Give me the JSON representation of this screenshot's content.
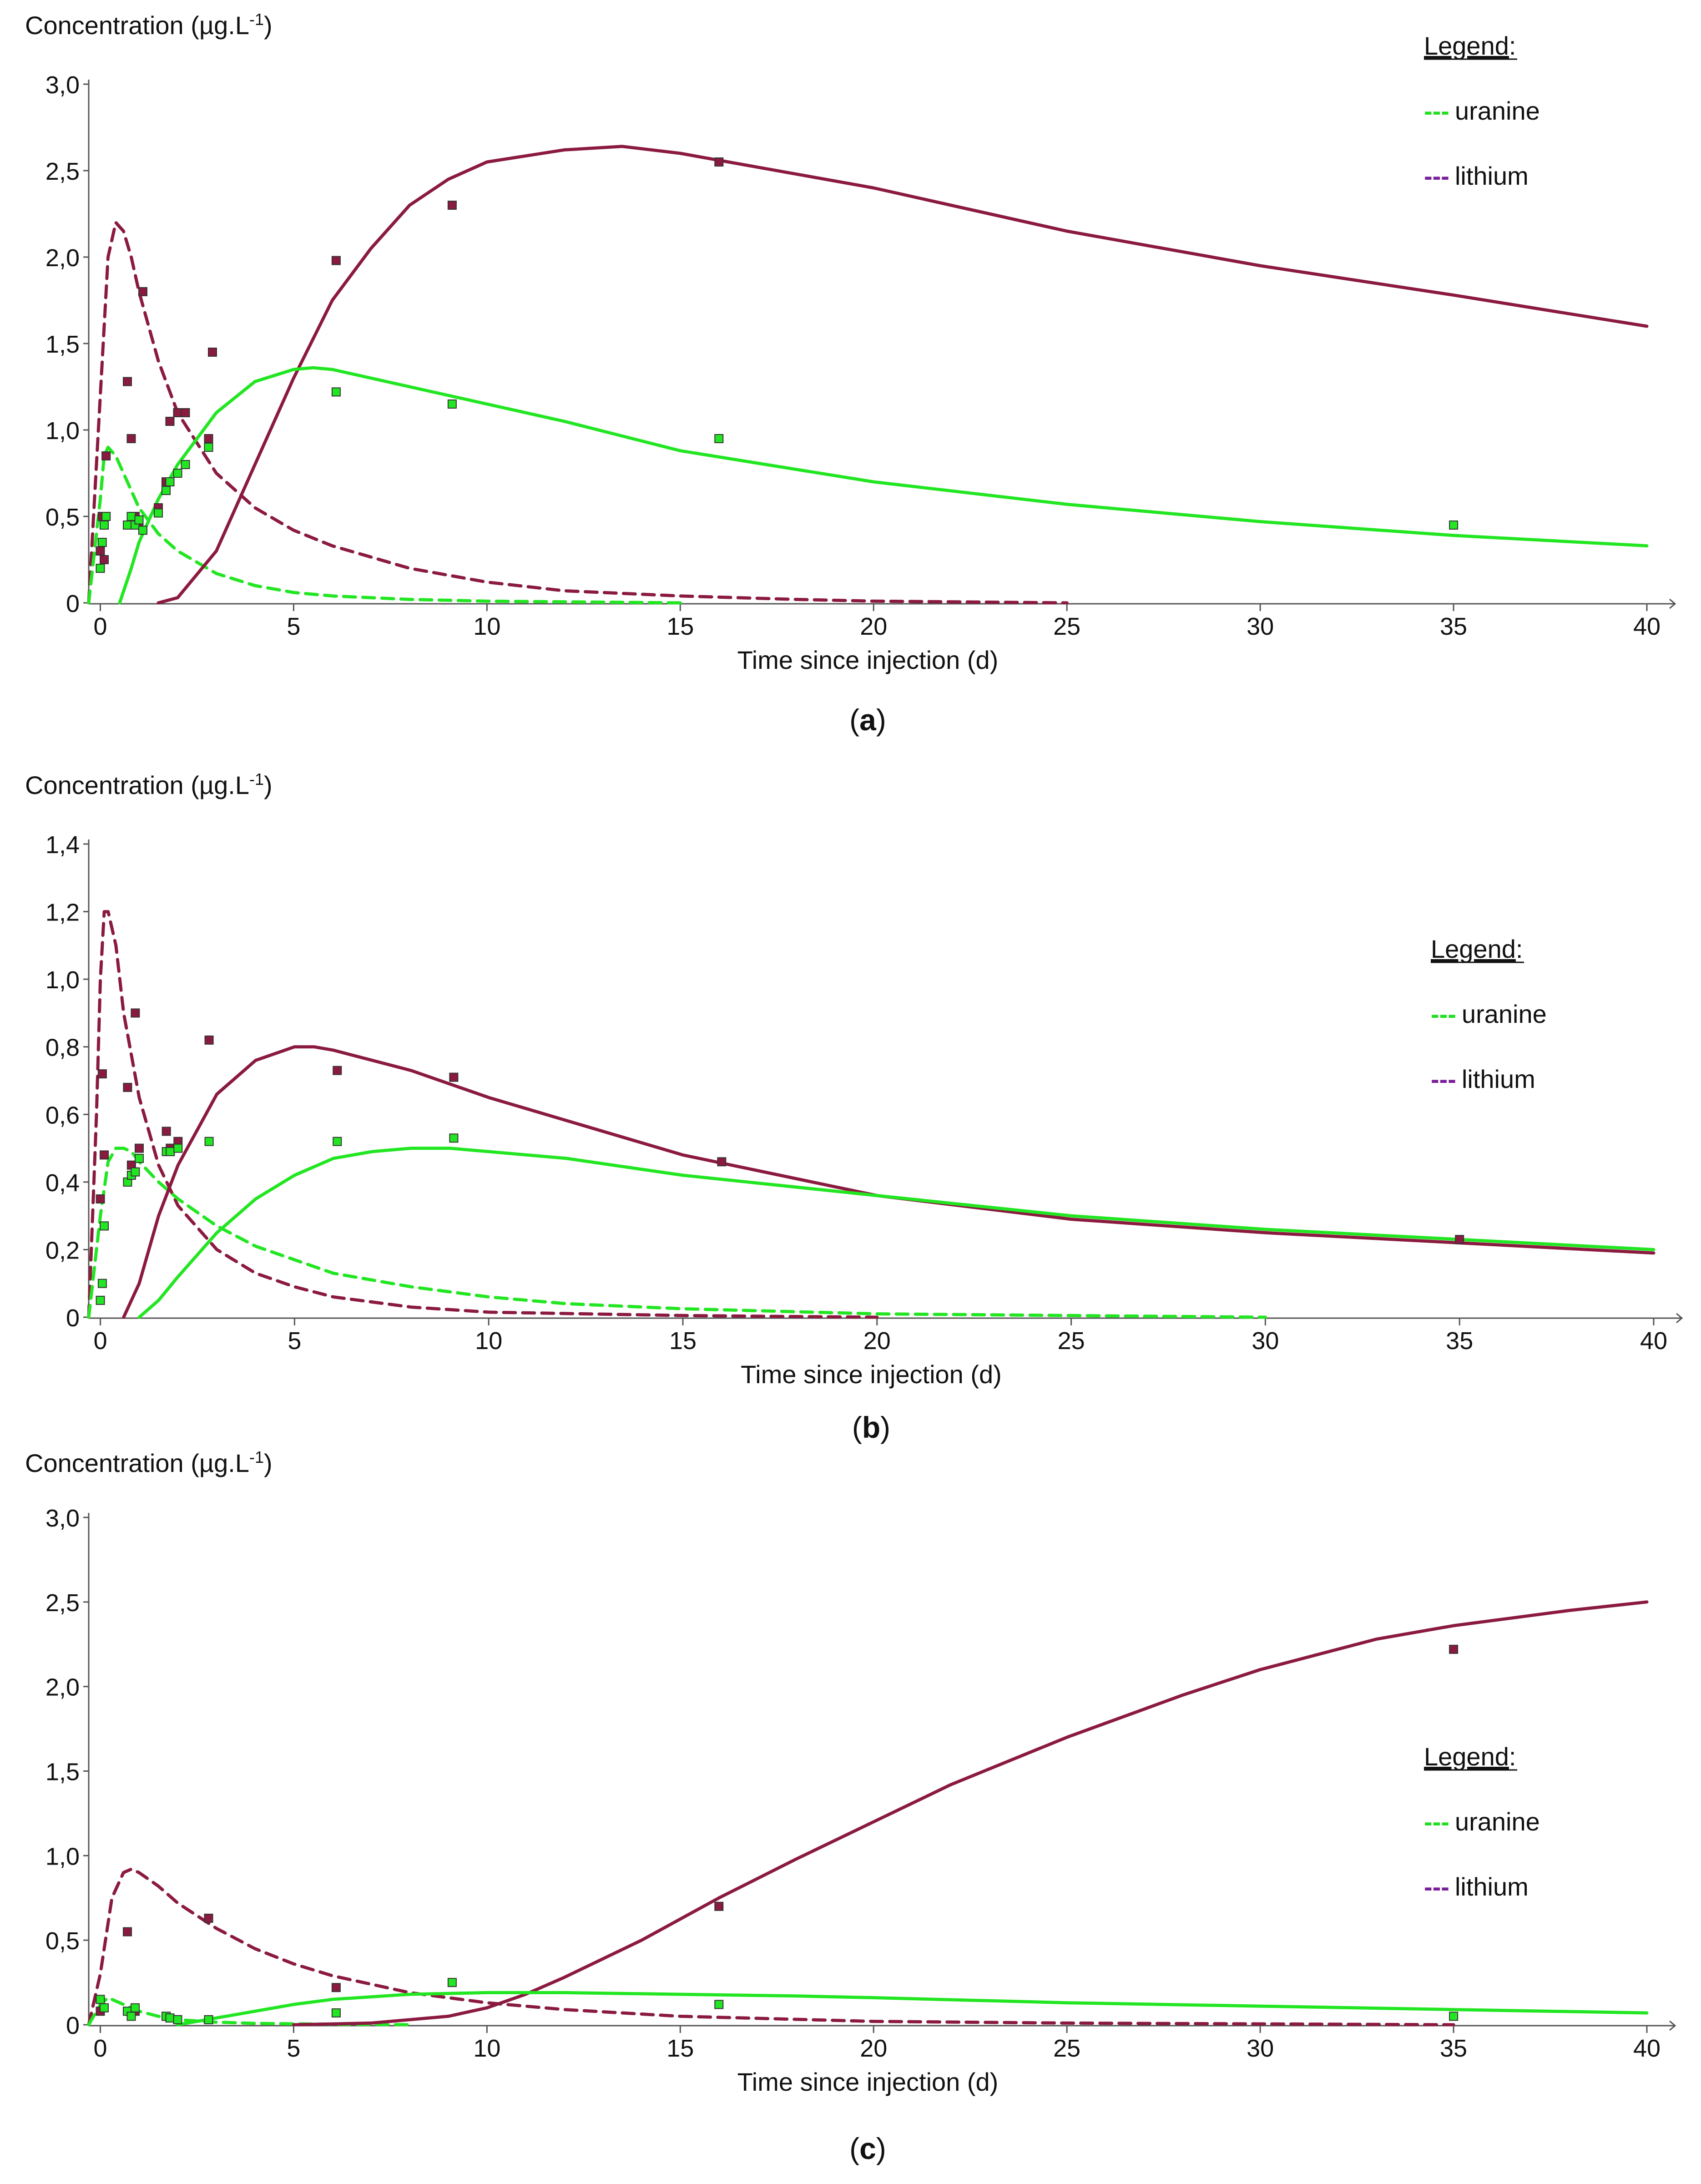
{
  "colors": {
    "lithium": "#8b1a3f",
    "uranine": "#22e622",
    "lithium_legend": "#7a1e9a",
    "uranine_legend": "#22dd22",
    "axis": "#555555",
    "text": "#111111"
  },
  "legend": {
    "title": "Legend",
    "title_suffix": ":",
    "items": [
      {
        "dash": "---",
        "label": "uranine",
        "color_key": "uranine_legend"
      },
      {
        "dash": "---",
        "label": "lithium",
        "color_key": "lithium_legend"
      }
    ]
  },
  "chart_data": [
    {
      "type": "line",
      "panel": "a",
      "caption": "(a)",
      "caption_letter": "a",
      "title": "",
      "ylabel": "Concentration (µg.L",
      "ylabel_sup": "-1",
      "ylabel_close": ")",
      "xlabel": "Time since injection (d)",
      "xlim": [
        -0.3,
        40
      ],
      "ylim": [
        0,
        3.0
      ],
      "xticks": [
        0,
        5,
        10,
        15,
        20,
        25,
        30,
        35,
        40
      ],
      "xtick_labels": [
        "0",
        "5",
        "10",
        "15",
        "20",
        "25",
        "30",
        "35",
        "40"
      ],
      "yticks": [
        0,
        0.5,
        1.0,
        1.5,
        2.0,
        2.5,
        3.0
      ],
      "ytick_labels": [
        "0",
        "0,5",
        "1,0",
        "1,5",
        "2,0",
        "2,5",
        "3,0"
      ],
      "series": [
        {
          "name": "lithium (dashed model)",
          "color_key": "lithium",
          "style": "dashed",
          "x": [
            -0.3,
            0,
            0.2,
            0.4,
            0.6,
            0.8,
            1,
            1.5,
            2,
            3,
            4,
            5,
            6,
            8,
            10,
            12,
            15,
            18,
            20,
            25
          ],
          "y": [
            0,
            1.2,
            2.0,
            2.2,
            2.15,
            2.0,
            1.8,
            1.4,
            1.1,
            0.75,
            0.55,
            0.42,
            0.33,
            0.2,
            0.12,
            0.07,
            0.04,
            0.02,
            0.01,
            0
          ]
        },
        {
          "name": "uranine (dashed model)",
          "color_key": "uranine",
          "style": "dashed",
          "x": [
            -0.3,
            0,
            0.1,
            0.2,
            0.4,
            0.6,
            1,
            1.5,
            2,
            3,
            4,
            5,
            6,
            8,
            10,
            15
          ],
          "y": [
            0,
            0.6,
            0.85,
            0.9,
            0.85,
            0.75,
            0.55,
            0.4,
            0.3,
            0.17,
            0.1,
            0.06,
            0.04,
            0.02,
            0.01,
            0
          ]
        },
        {
          "name": "lithium (solid model)",
          "color_key": "lithium",
          "style": "solid",
          "x": [
            1.5,
            2,
            3,
            4,
            5,
            6,
            7,
            8,
            9,
            10,
            12,
            13.5,
            15,
            17,
            20,
            25,
            30,
            35,
            40
          ],
          "y": [
            0,
            0.03,
            0.3,
            0.8,
            1.3,
            1.75,
            2.05,
            2.3,
            2.45,
            2.55,
            2.62,
            2.64,
            2.6,
            2.52,
            2.4,
            2.15,
            1.95,
            1.78,
            1.6
          ]
        },
        {
          "name": "uranine (solid model)",
          "color_key": "uranine",
          "style": "solid",
          "x": [
            0.5,
            0.8,
            1,
            1.5,
            2,
            3,
            4,
            5,
            5.5,
            6,
            7,
            8,
            9,
            10,
            12,
            15,
            20,
            25,
            30,
            35,
            40
          ],
          "y": [
            0,
            0.2,
            0.35,
            0.6,
            0.8,
            1.1,
            1.28,
            1.35,
            1.36,
            1.35,
            1.3,
            1.25,
            1.2,
            1.15,
            1.05,
            0.88,
            0.7,
            0.57,
            0.47,
            0.39,
            0.33
          ]
        },
        {
          "name": "lithium (observed)",
          "color_key": "lithium",
          "style": "points",
          "x": [
            0,
            0.05,
            0.1,
            0.15,
            0.7,
            0.8,
            0.9,
            1.0,
            1.1,
            1.5,
            1.7,
            1.8,
            2.0,
            2.2,
            2.8,
            2.9,
            6.1,
            9.1,
            16
          ],
          "y": [
            0.3,
            0.5,
            0.25,
            0.85,
            1.28,
            0.95,
            0.5,
            0.45,
            1.8,
            0.55,
            0.7,
            1.05,
            1.1,
            1.1,
            0.95,
            1.45,
            1.98,
            2.3,
            2.55
          ]
        },
        {
          "name": "uranine (observed)",
          "color_key": "uranine",
          "style": "points",
          "x": [
            0,
            0.05,
            0.1,
            0.15,
            0.7,
            0.8,
            0.9,
            1.0,
            1.1,
            1.5,
            1.7,
            1.8,
            2.0,
            2.2,
            2.8,
            6.1,
            9.1,
            16,
            35
          ],
          "y": [
            0.2,
            0.35,
            0.45,
            0.5,
            0.45,
            0.5,
            0.45,
            0.48,
            0.42,
            0.52,
            0.65,
            0.7,
            0.75,
            0.8,
            0.9,
            1.22,
            1.15,
            0.95,
            0.45
          ]
        }
      ]
    },
    {
      "type": "line",
      "panel": "b",
      "caption": "(b)",
      "caption_letter": "b",
      "title": "",
      "ylabel": "Concentration (µg.L",
      "ylabel_sup": "-1",
      "ylabel_close": ")",
      "xlabel": "Time since injection (d)",
      "xlim": [
        -0.3,
        40
      ],
      "ylim": [
        0,
        1.4
      ],
      "xticks": [
        0,
        5,
        10,
        15,
        20,
        25,
        30,
        35,
        40
      ],
      "xtick_labels": [
        "0",
        "5",
        "10",
        "15",
        "20",
        "25",
        "30",
        "35",
        "40"
      ],
      "yticks": [
        0,
        0.2,
        0.4,
        0.6,
        0.8,
        1.0,
        1.2,
        1.4
      ],
      "ytick_labels": [
        "0",
        "0,2",
        "0,4",
        "0,6",
        "0,8",
        "1,0",
        "1,2",
        "1,4"
      ],
      "series": [
        {
          "name": "lithium (dashed model)",
          "color_key": "lithium",
          "style": "dashed",
          "x": [
            -0.3,
            -0.1,
            0,
            0.1,
            0.2,
            0.4,
            0.6,
            1,
            1.5,
            2,
            3,
            4,
            5,
            6,
            8,
            10,
            15,
            20
          ],
          "y": [
            0,
            0.6,
            1.0,
            1.2,
            1.2,
            1.1,
            0.9,
            0.65,
            0.45,
            0.33,
            0.2,
            0.13,
            0.09,
            0.06,
            0.03,
            0.015,
            0.005,
            0
          ]
        },
        {
          "name": "uranine (dashed model)",
          "color_key": "uranine",
          "style": "dashed",
          "x": [
            -0.3,
            0,
            0.2,
            0.4,
            0.6,
            0.8,
            1,
            1.5,
            2,
            3,
            4,
            5,
            6,
            8,
            10,
            12,
            15,
            20,
            25,
            30
          ],
          "y": [
            0,
            0.3,
            0.46,
            0.5,
            0.5,
            0.49,
            0.46,
            0.4,
            0.35,
            0.27,
            0.21,
            0.17,
            0.13,
            0.09,
            0.06,
            0.04,
            0.025,
            0.01,
            0.005,
            0
          ]
        },
        {
          "name": "lithium (solid model)",
          "color_key": "lithium",
          "style": "solid",
          "x": [
            0.6,
            1,
            1.5,
            2,
            3,
            4,
            5,
            5.5,
            6,
            8,
            10,
            15,
            20,
            25,
            30,
            35,
            40
          ],
          "y": [
            0,
            0.1,
            0.3,
            0.45,
            0.66,
            0.76,
            0.8,
            0.8,
            0.79,
            0.73,
            0.65,
            0.48,
            0.36,
            0.29,
            0.25,
            0.22,
            0.19
          ]
        },
        {
          "name": "uranine (solid model)",
          "color_key": "uranine",
          "style": "solid",
          "x": [
            1,
            1.5,
            2,
            3,
            4,
            5,
            6,
            7,
            8,
            9,
            10,
            12,
            15,
            20,
            25,
            30,
            35,
            40
          ],
          "y": [
            0,
            0.05,
            0.12,
            0.25,
            0.35,
            0.42,
            0.47,
            0.49,
            0.5,
            0.5,
            0.49,
            0.47,
            0.42,
            0.36,
            0.3,
            0.26,
            0.23,
            0.2
          ]
        },
        {
          "name": "lithium (observed)",
          "color_key": "lithium",
          "style": "points",
          "x": [
            0,
            0.05,
            0.1,
            0.7,
            0.8,
            0.9,
            1.0,
            1.7,
            1.8,
            2.0,
            2.8,
            6.1,
            9.1,
            16,
            35
          ],
          "y": [
            0.35,
            0.72,
            0.48,
            0.68,
            0.45,
            0.9,
            0.5,
            0.55,
            0.5,
            0.52,
            0.82,
            0.73,
            0.71,
            0.46,
            0.23
          ]
        },
        {
          "name": "uranine (observed)",
          "color_key": "uranine",
          "style": "points",
          "x": [
            0,
            0.05,
            0.1,
            0.7,
            0.8,
            0.9,
            1.0,
            1.7,
            1.8,
            2.0,
            2.8,
            6.1,
            9.1
          ],
          "y": [
            0.05,
            0.1,
            0.27,
            0.4,
            0.42,
            0.43,
            0.47,
            0.49,
            0.49,
            0.5,
            0.52,
            0.52,
            0.53
          ]
        }
      ]
    },
    {
      "type": "line",
      "panel": "c",
      "caption": "(c)",
      "caption_letter": "c",
      "title": "",
      "ylabel": "Concentration (µg.L",
      "ylabel_sup": "-1",
      "ylabel_close": ")",
      "xlabel": "Time since injection (d)",
      "xlim": [
        -0.3,
        40
      ],
      "ylim": [
        0,
        3.0
      ],
      "xticks": [
        0,
        5,
        10,
        15,
        20,
        25,
        30,
        35,
        40
      ],
      "xtick_labels": [
        "0",
        "5",
        "10",
        "15",
        "20",
        "25",
        "30",
        "35",
        "40"
      ],
      "yticks": [
        0,
        0.5,
        1.0,
        1.5,
        2.0,
        2.5,
        3.0
      ],
      "ytick_labels": [
        "0",
        "0,5",
        "1,0",
        "1,5",
        "2,0",
        "2,5",
        "3,0"
      ],
      "series": [
        {
          "name": "lithium (dashed model)",
          "color_key": "lithium",
          "style": "dashed",
          "x": [
            -0.3,
            0,
            0.3,
            0.6,
            0.8,
            1,
            1.5,
            2,
            3,
            4,
            5,
            6,
            8,
            10,
            12,
            15,
            20,
            25,
            30,
            35
          ],
          "y": [
            0,
            0.3,
            0.75,
            0.9,
            0.92,
            0.9,
            0.82,
            0.72,
            0.57,
            0.45,
            0.36,
            0.29,
            0.19,
            0.13,
            0.09,
            0.05,
            0.02,
            0.01,
            0.005,
            0
          ]
        },
        {
          "name": "uranine (dashed model)",
          "color_key": "uranine",
          "style": "dashed",
          "x": [
            -0.3,
            0,
            0.2,
            0.5,
            1,
            1.5,
            2,
            3,
            4,
            6,
            8
          ],
          "y": [
            0,
            0.12,
            0.16,
            0.13,
            0.08,
            0.05,
            0.03,
            0.015,
            0.008,
            0.003,
            0
          ]
        },
        {
          "name": "lithium (solid model)",
          "color_key": "lithium",
          "style": "solid",
          "x": [
            5,
            7,
            9,
            10,
            11,
            12,
            14,
            16,
            18,
            20,
            22,
            25,
            28,
            30,
            33,
            35,
            38,
            40
          ],
          "y": [
            0,
            0.01,
            0.05,
            0.1,
            0.18,
            0.28,
            0.5,
            0.75,
            0.98,
            1.2,
            1.42,
            1.7,
            1.95,
            2.1,
            2.28,
            2.36,
            2.45,
            2.5
          ]
        },
        {
          "name": "uranine (solid model)",
          "color_key": "uranine",
          "style": "solid",
          "x": [
            2,
            3,
            4,
            5,
            6,
            8,
            10,
            12,
            15,
            18,
            20,
            25,
            30,
            35,
            40
          ],
          "y": [
            0,
            0.04,
            0.08,
            0.12,
            0.15,
            0.18,
            0.19,
            0.19,
            0.18,
            0.17,
            0.16,
            0.13,
            0.11,
            0.09,
            0.07
          ]
        },
        {
          "name": "lithium (observed)",
          "color_key": "lithium",
          "style": "points",
          "x": [
            0,
            0.7,
            0.9,
            1.7,
            2.0,
            2.8,
            6.1,
            16,
            35
          ],
          "y": [
            0.08,
            0.55,
            0.08,
            0.05,
            0.03,
            0.63,
            0.22,
            0.7,
            2.22
          ]
        },
        {
          "name": "uranine (observed)",
          "color_key": "uranine",
          "style": "points",
          "x": [
            0,
            0.1,
            0.7,
            0.8,
            0.9,
            1.7,
            1.8,
            2.0,
            2.8,
            6.1,
            9.1,
            16,
            35
          ],
          "y": [
            0.15,
            0.1,
            0.08,
            0.05,
            0.1,
            0.05,
            0.04,
            0.03,
            0.03,
            0.07,
            0.25,
            0.12,
            0.05
          ]
        }
      ]
    }
  ]
}
